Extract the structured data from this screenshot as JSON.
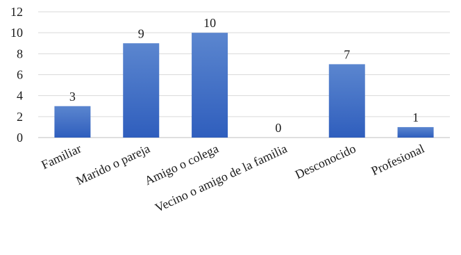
{
  "chart_data": {
    "type": "bar",
    "categories": [
      "Familiar",
      "Marido o pareja",
      "Amigo o colega",
      "Vecino o amigo de la familia",
      "Desconocido",
      "Profesional"
    ],
    "values": [
      3,
      9,
      10,
      0,
      7,
      1
    ],
    "yticks": [
      0,
      2,
      4,
      6,
      8,
      10,
      12
    ],
    "ylim": [
      0,
      12
    ],
    "grid": true,
    "data_labels": true,
    "bar_color_top": "#5b86cf",
    "bar_color_bottom": "#2f5ebd",
    "title": "",
    "xlabel": "",
    "ylabel": ""
  }
}
